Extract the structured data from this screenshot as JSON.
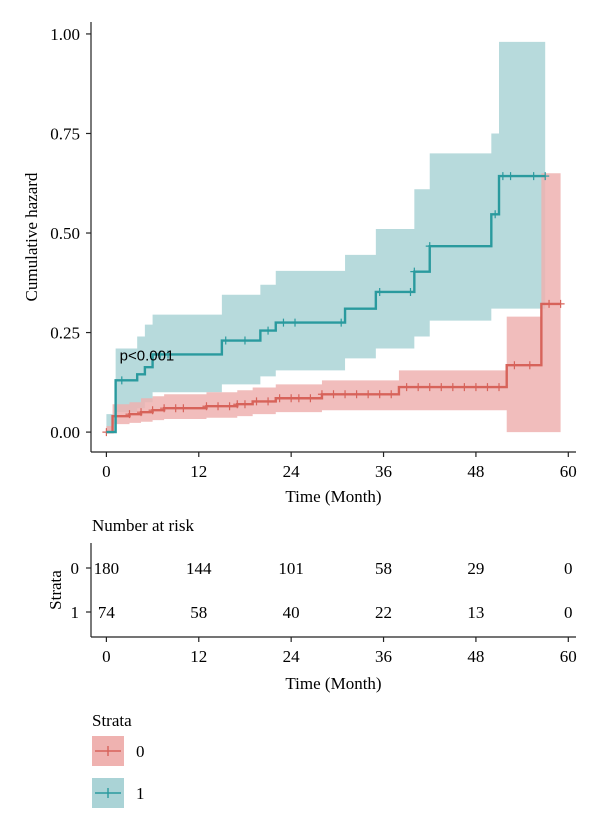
{
  "chart_data": [
    {
      "type": "line",
      "subtype": "cumulative-hazard-step",
      "xlabel": "Time (Month)",
      "ylabel": "Cumulative hazard",
      "xlim": [
        -2,
        61
      ],
      "ylim": [
        -0.05,
        1.03
      ],
      "x_ticks": [
        0,
        12,
        24,
        36,
        48,
        60
      ],
      "y_ticks": [
        0.0,
        0.25,
        0.5,
        0.75,
        1.0
      ],
      "y_tick_labels": [
        "0.00",
        "0.25",
        "0.50",
        "0.75",
        "1.00"
      ],
      "annotation": "p<0.001",
      "annotation_at": [
        1.2,
        0.195
      ],
      "grid": false,
      "series": [
        {
          "name": "0",
          "color": "#d7635a",
          "fill": "#efb2b0",
          "x": [
            0,
            0.8,
            3,
            4.5,
            6,
            7.5,
            13,
            17,
            19,
            22,
            28,
            38,
            52,
            56.5,
            59
          ],
          "y": [
            0.0,
            0.04,
            0.045,
            0.05,
            0.055,
            0.06,
            0.065,
            0.07,
            0.077,
            0.085,
            0.095,
            0.113,
            0.168,
            0.322,
            0.322
          ],
          "lower": [
            0.0,
            0.015,
            0.02,
            0.023,
            0.026,
            0.03,
            0.033,
            0.036,
            0.04,
            0.045,
            0.05,
            0.055,
            0.055,
            0.0,
            0.0
          ],
          "upper": [
            0.0,
            0.07,
            0.075,
            0.085,
            0.09,
            0.095,
            0.1,
            0.105,
            0.112,
            0.12,
            0.13,
            0.155,
            0.29,
            0.65,
            0.65
          ],
          "censor_x": [
            0,
            3,
            4.5,
            6,
            7.5,
            9,
            10,
            13,
            14.5,
            16,
            17,
            18,
            19.5,
            21,
            22.5,
            24,
            25,
            26.5,
            28,
            29.5,
            31,
            32.5,
            34,
            35.5,
            37,
            39,
            40.5,
            42,
            43.5,
            45,
            46.5,
            48,
            49.5,
            51,
            53,
            55,
            57.5,
            59
          ]
        },
        {
          "name": "1",
          "color": "#2a9a9e",
          "fill": "#aad3d6",
          "x": [
            0,
            1.2,
            4,
            5,
            6,
            15,
            20,
            22,
            31,
            35,
            40,
            42,
            50,
            51,
            57
          ],
          "y": [
            0.0,
            0.13,
            0.145,
            0.163,
            0.195,
            0.23,
            0.255,
            0.275,
            0.31,
            0.352,
            0.403,
            0.467,
            0.547,
            0.643,
            0.643
          ],
          "lower": [
            0.0,
            0.045,
            0.05,
            0.06,
            0.075,
            0.1,
            0.12,
            0.14,
            0.155,
            0.185,
            0.21,
            0.24,
            0.28,
            0.31,
            0.31
          ],
          "upper": [
            0.0,
            0.21,
            0.24,
            0.27,
            0.295,
            0.345,
            0.37,
            0.405,
            0.445,
            0.51,
            0.61,
            0.7,
            0.75,
            0.98,
            0.98
          ],
          "censor_x": [
            2,
            7,
            8,
            15.5,
            18,
            21,
            23,
            24.5,
            30.5,
            35.5,
            39.5,
            40,
            42,
            50.5,
            51.5,
            52.5,
            55.5,
            57
          ]
        }
      ]
    },
    {
      "type": "table",
      "title": "Number at risk",
      "ylabel": "Strata",
      "xlabel": "Time (Month)",
      "x_ticks": [
        0,
        12,
        24,
        36,
        48,
        60
      ],
      "rows": [
        {
          "stratum": "0",
          "color": "#d7635a",
          "values": [
            180,
            144,
            101,
            58,
            29,
            0
          ]
        },
        {
          "stratum": "1",
          "color": "#2a9a9e",
          "values": [
            74,
            58,
            40,
            22,
            13,
            0
          ]
        }
      ]
    }
  ],
  "legend": {
    "title": "Strata",
    "entries": [
      {
        "label": "0",
        "color": "#d7635a",
        "fill": "#efb2b0"
      },
      {
        "label": "1",
        "color": "#2a9a9e",
        "fill": "#aad3d6"
      }
    ]
  }
}
